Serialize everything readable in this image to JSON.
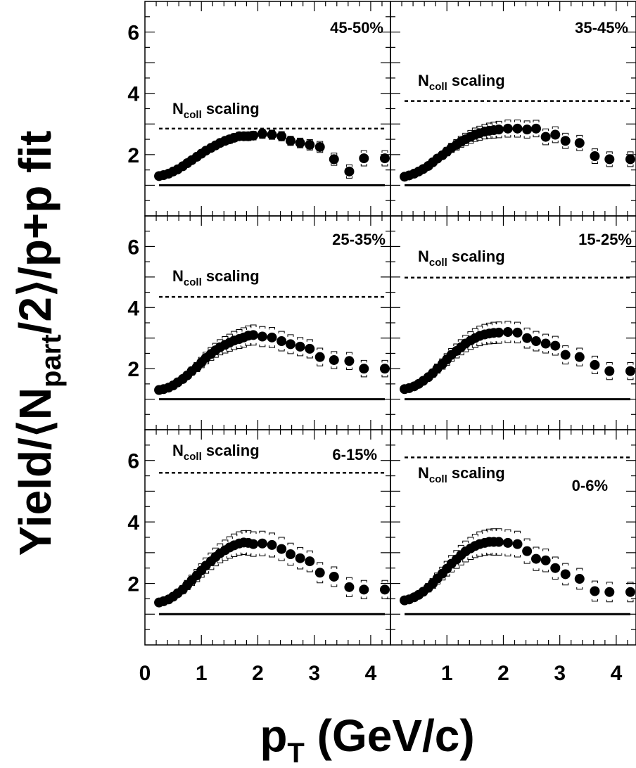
{
  "chart_data": {
    "type": "scatter",
    "ylabel": {
      "main": "Yield/",
      "n": "N",
      "sub": "part",
      "rest": "/2",
      "tail": "/p+p fit"
    },
    "xlabel": {
      "main": "p",
      "sub": "T",
      "rest": " (GeV/c)"
    },
    "xlim": [
      0,
      4.35
    ],
    "ylim": [
      0,
      7
    ],
    "x_ticks_left": [
      "0",
      "1",
      "2",
      "3",
      "4"
    ],
    "x_ticks_right": [
      "1",
      "2",
      "3",
      "4"
    ],
    "y_ticks": [
      "2",
      "4",
      "6"
    ],
    "reference": {
      "name_main": "N",
      "name_sub": "coll",
      "name_rest": " scaling",
      "unity": 1
    },
    "x": [
      0.25,
      0.33,
      0.42,
      0.5,
      0.58,
      0.67,
      0.75,
      0.83,
      0.92,
      1.0,
      1.08,
      1.17,
      1.25,
      1.33,
      1.42,
      1.5,
      1.58,
      1.67,
      1.75,
      1.83,
      1.92,
      2.08,
      2.25,
      2.42,
      2.58,
      2.75,
      2.92,
      3.1,
      3.35,
      3.62,
      3.88,
      4.25
    ],
    "panels": [
      {
        "label": "45-50%",
        "ncoll": 2.85,
        "y": [
          1.3,
          1.33,
          1.38,
          1.45,
          1.52,
          1.62,
          1.72,
          1.82,
          1.93,
          2.03,
          2.13,
          2.22,
          2.3,
          2.38,
          2.45,
          2.5,
          2.55,
          2.6,
          2.6,
          2.6,
          2.62,
          2.68,
          2.65,
          2.6,
          2.45,
          2.38,
          2.32,
          2.25,
          1.85,
          1.45,
          1.88,
          1.88
        ],
        "err": [
          0.05,
          0.05,
          0.05,
          0.06,
          0.06,
          0.07,
          0.08,
          0.08,
          0.09,
          0.1,
          0.1,
          0.11,
          0.11,
          0.12,
          0.12,
          0.13,
          0.13,
          0.13,
          0.13,
          0.14,
          0.14,
          0.15,
          0.15,
          0.15,
          0.15,
          0.16,
          0.17,
          0.18,
          0.2,
          0.22,
          0.25,
          0.25
        ]
      },
      {
        "label": "35-45%",
        "ncoll": 3.75,
        "y": [
          1.28,
          1.32,
          1.38,
          1.45,
          1.53,
          1.63,
          1.75,
          1.87,
          1.98,
          2.1,
          2.22,
          2.32,
          2.42,
          2.5,
          2.58,
          2.65,
          2.7,
          2.75,
          2.78,
          2.8,
          2.82,
          2.85,
          2.85,
          2.82,
          2.85,
          2.58,
          2.65,
          2.45,
          2.38,
          1.95,
          1.85,
          1.85
        ],
        "err": [
          0.06,
          0.06,
          0.07,
          0.07,
          0.08,
          0.09,
          0.1,
          0.11,
          0.12,
          0.14,
          0.15,
          0.17,
          0.18,
          0.2,
          0.21,
          0.22,
          0.23,
          0.24,
          0.25,
          0.26,
          0.27,
          0.28,
          0.28,
          0.28,
          0.27,
          0.26,
          0.26,
          0.25,
          0.25,
          0.24,
          0.24,
          0.24
        ]
      },
      {
        "label": "25-35%",
        "ncoll": 4.35,
        "y": [
          1.3,
          1.33,
          1.38,
          1.45,
          1.55,
          1.66,
          1.78,
          1.92,
          2.05,
          2.2,
          2.35,
          2.48,
          2.6,
          2.7,
          2.78,
          2.85,
          2.92,
          2.97,
          3.02,
          3.08,
          3.1,
          3.05,
          3.02,
          2.9,
          2.8,
          2.72,
          2.65,
          2.38,
          2.28,
          2.25,
          2.0,
          2.0
        ],
        "err": [
          0.07,
          0.07,
          0.08,
          0.08,
          0.09,
          0.1,
          0.11,
          0.13,
          0.15,
          0.17,
          0.19,
          0.21,
          0.23,
          0.25,
          0.27,
          0.28,
          0.3,
          0.31,
          0.32,
          0.32,
          0.33,
          0.33,
          0.33,
          0.32,
          0.31,
          0.3,
          0.3,
          0.29,
          0.28,
          0.28,
          0.27,
          0.27
        ]
      },
      {
        "label": "15-25%",
        "ncoll": 4.98,
        "y": [
          1.33,
          1.36,
          1.42,
          1.5,
          1.6,
          1.72,
          1.85,
          2.0,
          2.15,
          2.3,
          2.45,
          2.58,
          2.7,
          2.82,
          2.92,
          3.0,
          3.07,
          3.12,
          3.15,
          3.17,
          3.18,
          3.2,
          3.18,
          3.0,
          2.9,
          2.82,
          2.75,
          2.45,
          2.38,
          2.12,
          1.92,
          1.92
        ],
        "err": [
          0.07,
          0.07,
          0.08,
          0.09,
          0.1,
          0.11,
          0.13,
          0.15,
          0.17,
          0.19,
          0.21,
          0.23,
          0.25,
          0.27,
          0.29,
          0.31,
          0.32,
          0.33,
          0.34,
          0.35,
          0.35,
          0.35,
          0.34,
          0.33,
          0.32,
          0.31,
          0.31,
          0.3,
          0.29,
          0.29,
          0.28,
          0.28
        ]
      },
      {
        "label": "6-15%",
        "ncoll": 5.6,
        "y": [
          1.38,
          1.42,
          1.48,
          1.57,
          1.68,
          1.8,
          1.95,
          2.1,
          2.26,
          2.42,
          2.58,
          2.72,
          2.86,
          2.98,
          3.08,
          3.17,
          3.24,
          3.3,
          3.33,
          3.32,
          3.28,
          3.3,
          3.25,
          3.12,
          2.95,
          2.82,
          2.72,
          2.35,
          2.22,
          1.88,
          1.8,
          1.8
        ],
        "err": [
          0.08,
          0.08,
          0.09,
          0.1,
          0.11,
          0.13,
          0.15,
          0.17,
          0.2,
          0.22,
          0.25,
          0.27,
          0.29,
          0.31,
          0.33,
          0.35,
          0.37,
          0.38,
          0.39,
          0.4,
          0.4,
          0.4,
          0.39,
          0.38,
          0.36,
          0.35,
          0.34,
          0.33,
          0.32,
          0.31,
          0.3,
          0.3
        ]
      },
      {
        "label": "0-6%",
        "ncoll": 6.1,
        "y": [
          1.45,
          1.48,
          1.55,
          1.63,
          1.73,
          1.86,
          2.0,
          2.16,
          2.32,
          2.48,
          2.64,
          2.78,
          2.92,
          3.04,
          3.14,
          3.22,
          3.28,
          3.32,
          3.35,
          3.35,
          3.35,
          3.32,
          3.28,
          3.05,
          2.8,
          2.75,
          2.5,
          2.3,
          2.15,
          1.75,
          1.72,
          1.72
        ],
        "err": [
          0.08,
          0.08,
          0.09,
          0.1,
          0.12,
          0.14,
          0.16,
          0.18,
          0.21,
          0.24,
          0.27,
          0.29,
          0.32,
          0.34,
          0.36,
          0.38,
          0.4,
          0.41,
          0.42,
          0.43,
          0.43,
          0.43,
          0.42,
          0.4,
          0.38,
          0.37,
          0.36,
          0.35,
          0.34,
          0.33,
          0.32,
          0.32
        ]
      }
    ]
  }
}
